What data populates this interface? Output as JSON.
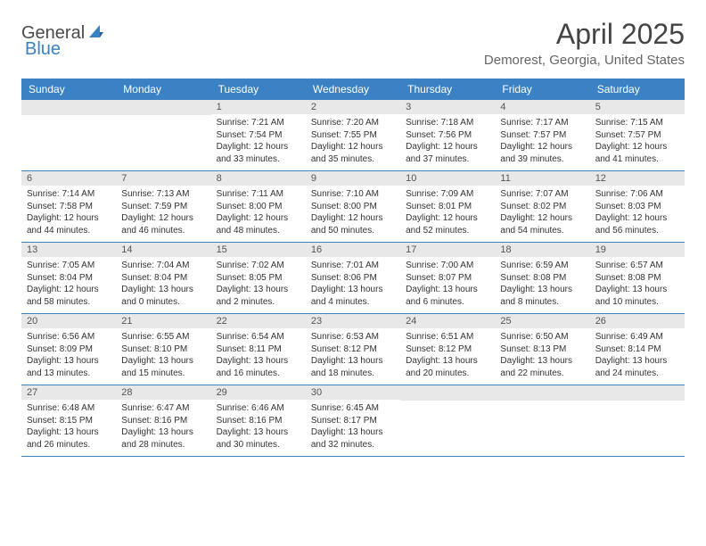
{
  "logo": {
    "part1": "General",
    "part2": "Blue"
  },
  "title": "April 2025",
  "location": "Demorest, Georgia, United States",
  "colors": {
    "header_bg": "#3b82c4",
    "header_text": "#ffffff",
    "daynum_bg": "#e8e8e8",
    "text": "#333333",
    "row_border": "#3b82c4"
  },
  "type": "table",
  "day_headers": [
    "Sunday",
    "Monday",
    "Tuesday",
    "Wednesday",
    "Thursday",
    "Friday",
    "Saturday"
  ],
  "weeks": [
    [
      null,
      null,
      {
        "n": "1",
        "sr": "Sunrise: 7:21 AM",
        "ss": "Sunset: 7:54 PM",
        "dl": "Daylight: 12 hours and 33 minutes."
      },
      {
        "n": "2",
        "sr": "Sunrise: 7:20 AM",
        "ss": "Sunset: 7:55 PM",
        "dl": "Daylight: 12 hours and 35 minutes."
      },
      {
        "n": "3",
        "sr": "Sunrise: 7:18 AM",
        "ss": "Sunset: 7:56 PM",
        "dl": "Daylight: 12 hours and 37 minutes."
      },
      {
        "n": "4",
        "sr": "Sunrise: 7:17 AM",
        "ss": "Sunset: 7:57 PM",
        "dl": "Daylight: 12 hours and 39 minutes."
      },
      {
        "n": "5",
        "sr": "Sunrise: 7:15 AM",
        "ss": "Sunset: 7:57 PM",
        "dl": "Daylight: 12 hours and 41 minutes."
      }
    ],
    [
      {
        "n": "6",
        "sr": "Sunrise: 7:14 AM",
        "ss": "Sunset: 7:58 PM",
        "dl": "Daylight: 12 hours and 44 minutes."
      },
      {
        "n": "7",
        "sr": "Sunrise: 7:13 AM",
        "ss": "Sunset: 7:59 PM",
        "dl": "Daylight: 12 hours and 46 minutes."
      },
      {
        "n": "8",
        "sr": "Sunrise: 7:11 AM",
        "ss": "Sunset: 8:00 PM",
        "dl": "Daylight: 12 hours and 48 minutes."
      },
      {
        "n": "9",
        "sr": "Sunrise: 7:10 AM",
        "ss": "Sunset: 8:00 PM",
        "dl": "Daylight: 12 hours and 50 minutes."
      },
      {
        "n": "10",
        "sr": "Sunrise: 7:09 AM",
        "ss": "Sunset: 8:01 PM",
        "dl": "Daylight: 12 hours and 52 minutes."
      },
      {
        "n": "11",
        "sr": "Sunrise: 7:07 AM",
        "ss": "Sunset: 8:02 PM",
        "dl": "Daylight: 12 hours and 54 minutes."
      },
      {
        "n": "12",
        "sr": "Sunrise: 7:06 AM",
        "ss": "Sunset: 8:03 PM",
        "dl": "Daylight: 12 hours and 56 minutes."
      }
    ],
    [
      {
        "n": "13",
        "sr": "Sunrise: 7:05 AM",
        "ss": "Sunset: 8:04 PM",
        "dl": "Daylight: 12 hours and 58 minutes."
      },
      {
        "n": "14",
        "sr": "Sunrise: 7:04 AM",
        "ss": "Sunset: 8:04 PM",
        "dl": "Daylight: 13 hours and 0 minutes."
      },
      {
        "n": "15",
        "sr": "Sunrise: 7:02 AM",
        "ss": "Sunset: 8:05 PM",
        "dl": "Daylight: 13 hours and 2 minutes."
      },
      {
        "n": "16",
        "sr": "Sunrise: 7:01 AM",
        "ss": "Sunset: 8:06 PM",
        "dl": "Daylight: 13 hours and 4 minutes."
      },
      {
        "n": "17",
        "sr": "Sunrise: 7:00 AM",
        "ss": "Sunset: 8:07 PM",
        "dl": "Daylight: 13 hours and 6 minutes."
      },
      {
        "n": "18",
        "sr": "Sunrise: 6:59 AM",
        "ss": "Sunset: 8:08 PM",
        "dl": "Daylight: 13 hours and 8 minutes."
      },
      {
        "n": "19",
        "sr": "Sunrise: 6:57 AM",
        "ss": "Sunset: 8:08 PM",
        "dl": "Daylight: 13 hours and 10 minutes."
      }
    ],
    [
      {
        "n": "20",
        "sr": "Sunrise: 6:56 AM",
        "ss": "Sunset: 8:09 PM",
        "dl": "Daylight: 13 hours and 13 minutes."
      },
      {
        "n": "21",
        "sr": "Sunrise: 6:55 AM",
        "ss": "Sunset: 8:10 PM",
        "dl": "Daylight: 13 hours and 15 minutes."
      },
      {
        "n": "22",
        "sr": "Sunrise: 6:54 AM",
        "ss": "Sunset: 8:11 PM",
        "dl": "Daylight: 13 hours and 16 minutes."
      },
      {
        "n": "23",
        "sr": "Sunrise: 6:53 AM",
        "ss": "Sunset: 8:12 PM",
        "dl": "Daylight: 13 hours and 18 minutes."
      },
      {
        "n": "24",
        "sr": "Sunrise: 6:51 AM",
        "ss": "Sunset: 8:12 PM",
        "dl": "Daylight: 13 hours and 20 minutes."
      },
      {
        "n": "25",
        "sr": "Sunrise: 6:50 AM",
        "ss": "Sunset: 8:13 PM",
        "dl": "Daylight: 13 hours and 22 minutes."
      },
      {
        "n": "26",
        "sr": "Sunrise: 6:49 AM",
        "ss": "Sunset: 8:14 PM",
        "dl": "Daylight: 13 hours and 24 minutes."
      }
    ],
    [
      {
        "n": "27",
        "sr": "Sunrise: 6:48 AM",
        "ss": "Sunset: 8:15 PM",
        "dl": "Daylight: 13 hours and 26 minutes."
      },
      {
        "n": "28",
        "sr": "Sunrise: 6:47 AM",
        "ss": "Sunset: 8:16 PM",
        "dl": "Daylight: 13 hours and 28 minutes."
      },
      {
        "n": "29",
        "sr": "Sunrise: 6:46 AM",
        "ss": "Sunset: 8:16 PM",
        "dl": "Daylight: 13 hours and 30 minutes."
      },
      {
        "n": "30",
        "sr": "Sunrise: 6:45 AM",
        "ss": "Sunset: 8:17 PM",
        "dl": "Daylight: 13 hours and 32 minutes."
      },
      null,
      null,
      null
    ]
  ]
}
